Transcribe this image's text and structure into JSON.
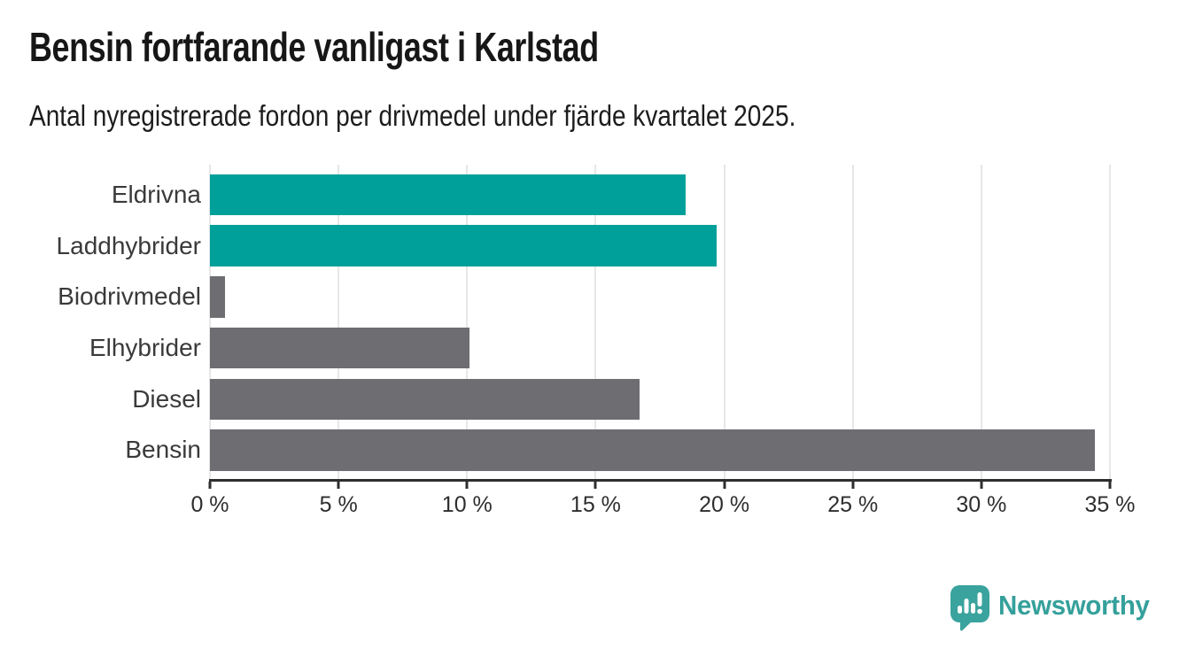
{
  "header": {
    "title": "Bensin fortfarande vanligast i Karlstad",
    "subtitle": "Antal nyregistrerade fordon per drivmedel under fjärde kvartalet 2025."
  },
  "chart_data": {
    "type": "bar",
    "orientation": "horizontal",
    "title": "Bensin fortfarande vanligast i Karlstad",
    "subtitle": "Antal nyregistrerade fordon per drivmedel under fjärde kvartalet 2025.",
    "categories": [
      "Eldrivna",
      "Laddhybrider",
      "Biodrivmedel",
      "Elhybrider",
      "Diesel",
      "Bensin"
    ],
    "values": [
      18.5,
      19.7,
      0.6,
      10.1,
      16.7,
      34.4
    ],
    "unit": "%",
    "bar_colors": [
      "#00a09a",
      "#00a09a",
      "#6d6d72",
      "#6d6d72",
      "#6d6d72",
      "#6d6d72"
    ],
    "xlim": [
      0,
      35
    ],
    "xticks": [
      0,
      5,
      10,
      15,
      20,
      25,
      30,
      35
    ],
    "xtick_labels": [
      "0 %",
      "5 %",
      "10 %",
      "15 %",
      "20 %",
      "25 %",
      "30 %",
      "35 %"
    ],
    "grid": "vertical",
    "legend": "none",
    "colors": {
      "highlight": "#00a09a",
      "default": "#6d6d72",
      "gridline": "#e7e7e7",
      "axis": "#2e2e2e",
      "text": "#1d1d1d"
    }
  },
  "footer": {
    "brand": "Newsworthy",
    "brand_color": "#35a09b",
    "logo_icon": "newsworthy-speech-bubble-chart-icon"
  }
}
